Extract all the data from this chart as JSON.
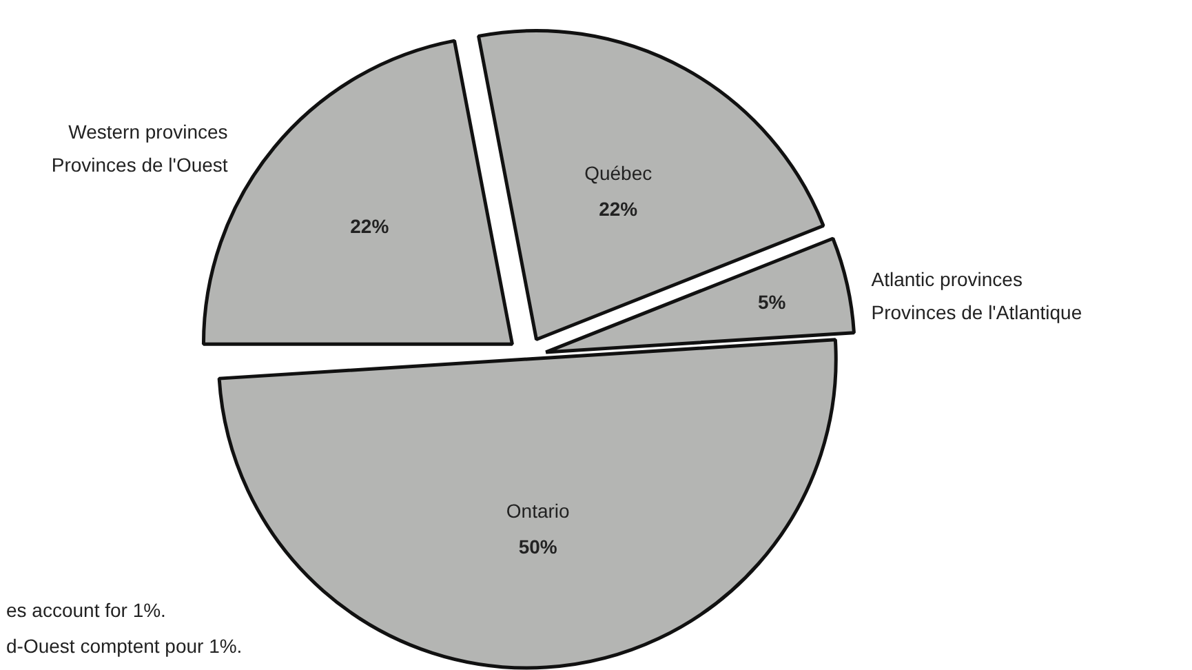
{
  "chart_data": {
    "type": "pie",
    "categories": [
      "Western provinces\nProvinces de l'Ouest",
      "Québec",
      "Atlantic provinces\nProvinces de l'Atlantique",
      "Ontario"
    ],
    "values": [
      22,
      22,
      5,
      50
    ],
    "colors": [
      "#b4b5b3",
      "#b4b5b3",
      "#b4b5b3",
      "#b4b5b3"
    ],
    "value_labels": [
      "22%",
      "22%",
      "5%",
      "50%"
    ],
    "annotations": [
      "es account for 1%.",
      "d-Ouest comptent pour 1%."
    ]
  }
}
